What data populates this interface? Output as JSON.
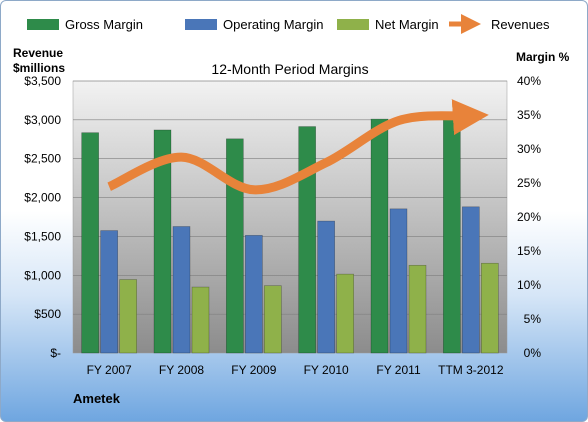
{
  "chart_data": {
    "type": "bar",
    "title": "12-Month Period Margins",
    "company": "Ametek",
    "ylabel_left_line1": "Revenue",
    "ylabel_left_line2": "$millions",
    "ylabel_right": "Margin %",
    "categories": [
      "FY 2007",
      "FY 2008",
      "FY 2009",
      "FY 2010",
      "FY 2011",
      "TTM 3-2012"
    ],
    "ylim_left": [
      0,
      3500
    ],
    "ylim_right": [
      0,
      40
    ],
    "left_ticks": [
      "$-",
      "$500",
      "$1,000",
      "$1,500",
      "$2,000",
      "$2,500",
      "$3,000",
      "$3,500"
    ],
    "right_ticks": [
      "0%",
      "5%",
      "10%",
      "15%",
      "20%",
      "25%",
      "30%",
      "35%",
      "40%"
    ],
    "series": [
      {
        "name": "Gross Margin",
        "axis": "right",
        "color": "#2e8b4a",
        "values": [
          32.4,
          32.8,
          31.5,
          33.3,
          34.4,
          35.0
        ]
      },
      {
        "name": "Operating Margin",
        "axis": "right",
        "color": "#4a76b8",
        "values": [
          18.0,
          18.6,
          17.3,
          19.4,
          21.2,
          21.5
        ]
      },
      {
        "name": "Net Margin",
        "axis": "right",
        "color": "#8fb14a",
        "values": [
          10.8,
          9.7,
          9.9,
          11.6,
          12.9,
          13.2
        ]
      }
    ],
    "line_series": {
      "name": "Revenues",
      "axis": "left",
      "color": "#e8833a",
      "values": [
        2140,
        2520,
        2100,
        2450,
        2990,
        3050
      ]
    },
    "grid": true,
    "legend_position": "top"
  }
}
